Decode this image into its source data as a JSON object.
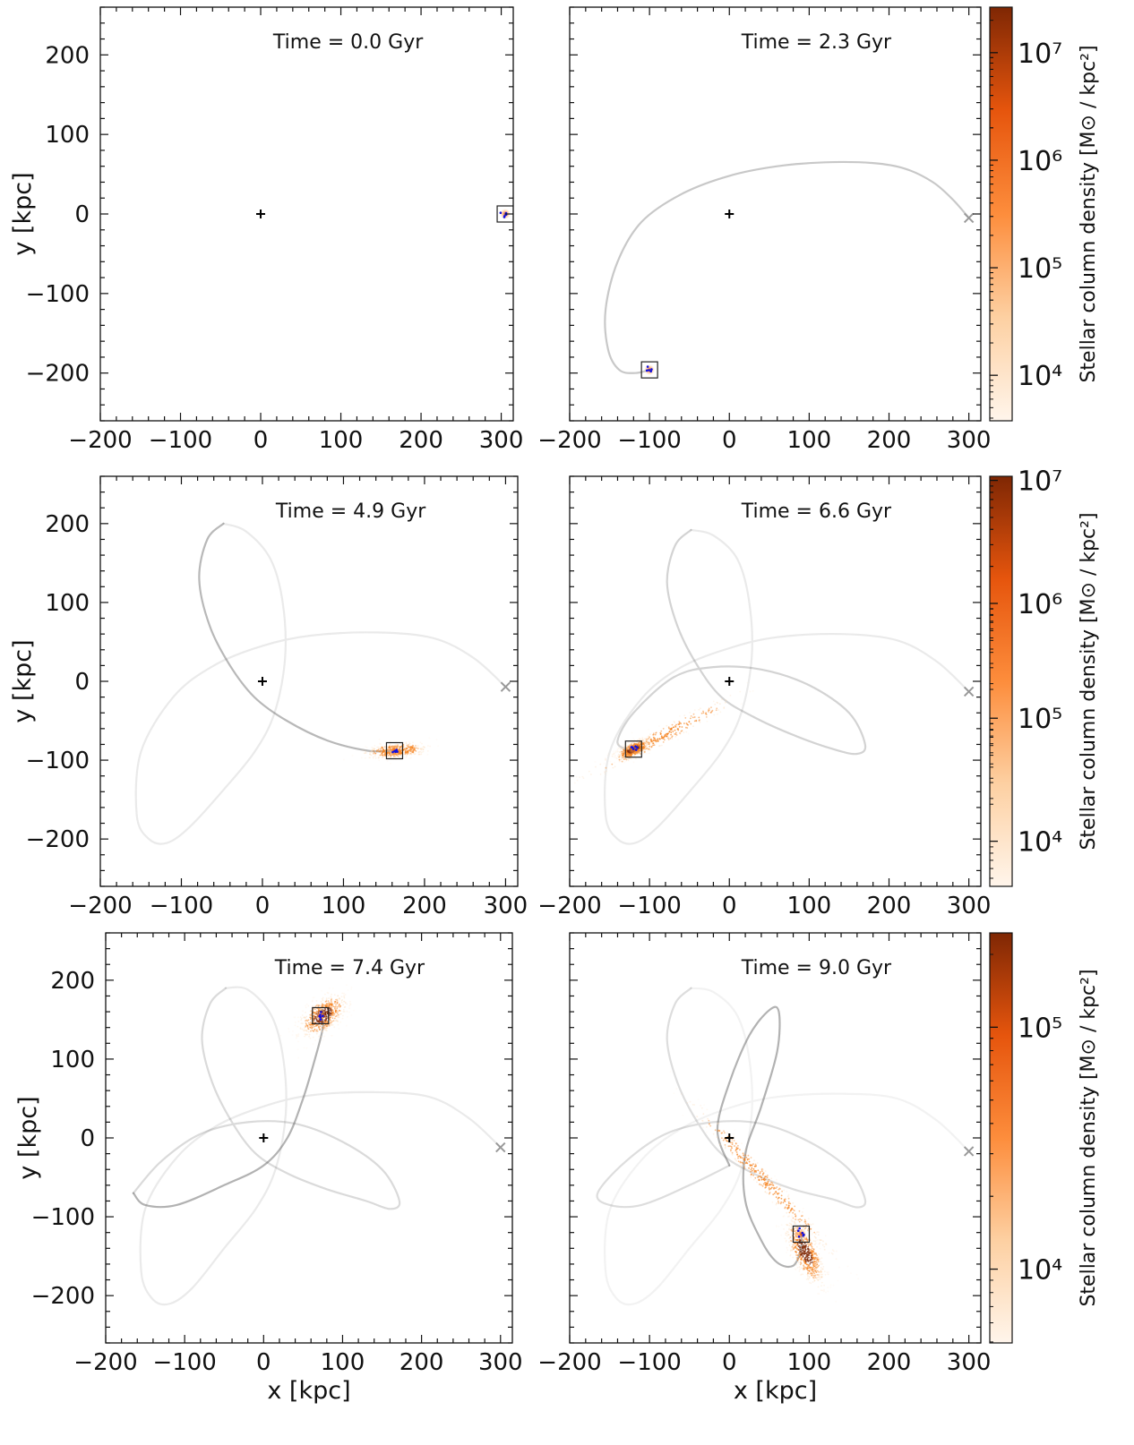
{
  "figure": {
    "x_label": "x [kpc]",
    "y_label": "y [kpc]",
    "colorbar_label": "Stellar column density [M⊙ / kpc²]"
  },
  "chart_data": [
    {
      "type": "scatter",
      "annotation": "Time = 0.0 Gyr",
      "xlim": [
        -200,
        315
      ],
      "ylim": [
        -260,
        260
      ],
      "x_ticks": [
        -200,
        -100,
        0,
        100,
        200,
        300
      ],
      "y_ticks": [
        -200,
        -100,
        0,
        100,
        200
      ],
      "host_center": [
        0,
        0
      ],
      "satellite": [
        305,
        0
      ],
      "start_marker": null,
      "orbit_segments": [],
      "stream": []
    },
    {
      "type": "scatter",
      "annotation": "Time = 2.3 Gyr",
      "xlim": [
        -200,
        315
      ],
      "ylim": [
        -260,
        260
      ],
      "x_ticks": [
        -200,
        -100,
        0,
        100,
        200,
        300
      ],
      "y_ticks": [
        -200,
        -100,
        0,
        100,
        200
      ],
      "host_center": [
        0,
        0
      ],
      "satellite": [
        -100,
        -196
      ],
      "start_marker": [
        300,
        -5
      ],
      "orbit_segments": [
        {
          "opacity": 0.32,
          "points": [
            [
              300,
              -5
            ],
            [
              280,
              18
            ],
            [
              255,
              40
            ],
            [
              220,
              57
            ],
            [
              180,
              64
            ],
            [
              120,
              65
            ],
            [
              60,
              60
            ],
            [
              0,
              48
            ],
            [
              -60,
              25
            ],
            [
              -110,
              -10
            ],
            [
              -140,
              -60
            ],
            [
              -155,
              -120
            ],
            [
              -152,
              -170
            ],
            [
              -138,
              -196
            ],
            [
              -118,
              -200
            ],
            [
              -100,
              -196
            ]
          ]
        }
      ],
      "stream": []
    },
    {
      "type": "scatter",
      "annotation": "Time = 4.9 Gyr",
      "xlim": [
        -200,
        315
      ],
      "ylim": [
        -260,
        260
      ],
      "x_ticks": [
        -200,
        -100,
        0,
        100,
        200,
        300
      ],
      "y_ticks": [
        -200,
        -100,
        0,
        100,
        200
      ],
      "host_center": [
        0,
        0
      ],
      "satellite": [
        163,
        -88
      ],
      "start_marker": [
        300,
        -7
      ],
      "orbit_segments": [
        {
          "opacity": 0.12,
          "points": [
            [
              300,
              -7
            ],
            [
              260,
              30
            ],
            [
              210,
              55
            ],
            [
              140,
              62
            ],
            [
              60,
              58
            ],
            [
              0,
              45
            ],
            [
              -60,
              20
            ],
            [
              -110,
              -20
            ],
            [
              -150,
              -90
            ],
            [
              -155,
              -170
            ],
            [
              -140,
              -200
            ],
            [
              -118,
              -205
            ],
            [
              -90,
              -185
            ],
            [
              -50,
              -140
            ],
            [
              -10,
              -90
            ],
            [
              15,
              -40
            ],
            [
              28,
              30
            ],
            [
              25,
              100
            ],
            [
              10,
              155
            ],
            [
              -20,
              190
            ],
            [
              -48,
              200
            ]
          ]
        },
        {
          "opacity": 0.42,
          "points": [
            [
              -48,
              200
            ],
            [
              -68,
              180
            ],
            [
              -78,
              130
            ],
            [
              -65,
              70
            ],
            [
              -40,
              20
            ],
            [
              -10,
              -20
            ],
            [
              30,
              -50
            ],
            [
              80,
              -75
            ],
            [
              130,
              -88
            ],
            [
              163,
              -88
            ]
          ]
        }
      ],
      "stream": [
        {
          "center": [
            165,
            -88
          ],
          "length": 60,
          "width": 14,
          "angle": 5,
          "density": 0.35
        }
      ]
    },
    {
      "type": "scatter",
      "annotation": "Time = 6.6 Gyr",
      "xlim": [
        -200,
        315
      ],
      "ylim": [
        -260,
        260
      ],
      "x_ticks": [
        -200,
        -100,
        0,
        100,
        200,
        300
      ],
      "y_ticks": [
        -200,
        -100,
        0,
        100,
        200
      ],
      "host_center": [
        0,
        0
      ],
      "satellite": [
        -120,
        -86
      ],
      "start_marker": [
        300,
        -13
      ],
      "orbit_segments": [
        {
          "opacity": 0.12,
          "points": [
            [
              300,
              -13
            ],
            [
              260,
              25
            ],
            [
              210,
              52
            ],
            [
              140,
              60
            ],
            [
              60,
              56
            ],
            [
              0,
              42
            ],
            [
              -60,
              18
            ],
            [
              -110,
              -22
            ],
            [
              -150,
              -90
            ],
            [
              -155,
              -170
            ],
            [
              -140,
              -200
            ],
            [
              -118,
              -205
            ],
            [
              -90,
              -185
            ],
            [
              -50,
              -140
            ],
            [
              -10,
              -90
            ],
            [
              15,
              -40
            ],
            [
              28,
              30
            ],
            [
              25,
              100
            ],
            [
              10,
              155
            ],
            [
              -20,
              185
            ],
            [
              -48,
              192
            ]
          ]
        },
        {
          "opacity": 0.26,
          "points": [
            [
              -48,
              192
            ],
            [
              -68,
              172
            ],
            [
              -78,
              125
            ],
            [
              -65,
              70
            ],
            [
              -40,
              20
            ],
            [
              -10,
              -20
            ],
            [
              30,
              -45
            ],
            [
              80,
              -68
            ],
            [
              130,
              -86
            ],
            [
              160,
              -92
            ],
            [
              170,
              -80
            ],
            [
              150,
              -40
            ],
            [
              100,
              -5
            ],
            [
              40,
              15
            ],
            [
              -20,
              18
            ],
            [
              -70,
              5
            ],
            [
              -120,
              -40
            ],
            [
              -140,
              -75
            ],
            [
              -130,
              -86
            ],
            [
              -120,
              -86
            ]
          ]
        }
      ],
      "stream": [
        {
          "center": [
            -85,
            -70
          ],
          "length": 170,
          "width": 16,
          "angle": 28,
          "density": 0.2
        },
        {
          "center": [
            -120,
            -86
          ],
          "length": 35,
          "width": 14,
          "angle": 25,
          "density": 0.55
        }
      ]
    },
    {
      "type": "scatter",
      "annotation": "Time = 7.4 Gyr",
      "xlim": [
        -200,
        315
      ],
      "ylim": [
        -260,
        260
      ],
      "x_ticks": [
        -200,
        -100,
        0,
        100,
        200,
        300
      ],
      "y_ticks": [
        -200,
        -100,
        0,
        100,
        200
      ],
      "host_center": [
        0,
        0
      ],
      "satellite": [
        72,
        155
      ],
      "start_marker": [
        300,
        -12
      ],
      "orbit_segments": [
        {
          "opacity": 0.12,
          "points": [
            [
              300,
              -12
            ],
            [
              260,
              25
            ],
            [
              210,
              52
            ],
            [
              140,
              58
            ],
            [
              60,
              54
            ],
            [
              0,
              40
            ],
            [
              -60,
              15
            ],
            [
              -110,
              -25
            ],
            [
              -150,
              -90
            ],
            [
              -155,
              -170
            ],
            [
              -140,
              -205
            ],
            [
              -118,
              -210
            ],
            [
              -90,
              -190
            ],
            [
              -50,
              -140
            ],
            [
              -10,
              -90
            ],
            [
              15,
              -40
            ],
            [
              28,
              30
            ],
            [
              25,
              100
            ],
            [
              10,
              155
            ],
            [
              -20,
              188
            ],
            [
              -48,
              190
            ]
          ]
        },
        {
          "opacity": 0.22,
          "points": [
            [
              -48,
              190
            ],
            [
              -68,
              170
            ],
            [
              -78,
              125
            ],
            [
              -65,
              70
            ],
            [
              -40,
              20
            ],
            [
              -10,
              -20
            ],
            [
              30,
              -45
            ],
            [
              80,
              -65
            ],
            [
              130,
              -80
            ],
            [
              160,
              -90
            ],
            [
              172,
              -80
            ],
            [
              150,
              -40
            ],
            [
              100,
              -5
            ],
            [
              40,
              18
            ],
            [
              -20,
              20
            ],
            [
              -80,
              5
            ],
            [
              -130,
              -30
            ],
            [
              -165,
              -70
            ]
          ]
        },
        {
          "opacity": 0.45,
          "points": [
            [
              -165,
              -70
            ],
            [
              -150,
              -85
            ],
            [
              -110,
              -85
            ],
            [
              -50,
              -60
            ],
            [
              0,
              -35
            ],
            [
              30,
              0
            ],
            [
              50,
              50
            ],
            [
              65,
              100
            ],
            [
              75,
              140
            ],
            [
              72,
              155
            ]
          ]
        }
      ],
      "stream": [
        {
          "center": [
            75,
            155
          ],
          "length": 55,
          "width": 30,
          "angle": 40,
          "density": 0.6
        }
      ]
    },
    {
      "type": "scatter",
      "annotation": "Time = 9.0 Gyr",
      "xlim": [
        -200,
        315
      ],
      "ylim": [
        -260,
        260
      ],
      "x_ticks": [
        -200,
        -100,
        0,
        100,
        200,
        300
      ],
      "y_ticks": [
        -200,
        -100,
        0,
        100,
        200
      ],
      "host_center": [
        0,
        0
      ],
      "satellite": [
        90,
        -122
      ],
      "start_marker": [
        300,
        -17
      ],
      "orbit_segments": [
        {
          "opacity": 0.08,
          "points": [
            [
              300,
              -17
            ],
            [
              260,
              22
            ],
            [
              210,
              50
            ],
            [
              140,
              56
            ],
            [
              60,
              52
            ],
            [
              0,
              38
            ],
            [
              -60,
              12
            ],
            [
              -110,
              -28
            ],
            [
              -150,
              -92
            ],
            [
              -155,
              -170
            ],
            [
              -140,
              -205
            ],
            [
              -118,
              -210
            ],
            [
              -90,
              -190
            ],
            [
              -50,
              -140
            ],
            [
              -10,
              -90
            ],
            [
              15,
              -40
            ],
            [
              28,
              30
            ],
            [
              25,
              100
            ],
            [
              10,
              155
            ],
            [
              -20,
              185
            ],
            [
              -48,
              190
            ]
          ]
        },
        {
          "opacity": 0.2,
          "points": [
            [
              -48,
              190
            ],
            [
              -68,
              170
            ],
            [
              -78,
              125
            ],
            [
              -65,
              70
            ],
            [
              -40,
              20
            ],
            [
              -10,
              -20
            ],
            [
              30,
              -45
            ],
            [
              80,
              -65
            ],
            [
              130,
              -78
            ],
            [
              160,
              -88
            ],
            [
              170,
              -78
            ],
            [
              150,
              -40
            ],
            [
              100,
              -5
            ],
            [
              40,
              18
            ],
            [
              -20,
              20
            ],
            [
              -80,
              5
            ],
            [
              -130,
              -30
            ],
            [
              -165,
              -70
            ],
            [
              -150,
              -85
            ],
            [
              -110,
              -85
            ],
            [
              -50,
              -60
            ],
            [
              0,
              -35
            ]
          ]
        },
        {
          "opacity": 0.45,
          "points": [
            [
              0,
              -35
            ],
            [
              -15,
              10
            ],
            [
              0,
              70
            ],
            [
              25,
              130
            ],
            [
              50,
              162
            ],
            [
              62,
              160
            ],
            [
              60,
              110
            ],
            [
              40,
              40
            ],
            [
              20,
              -20
            ],
            [
              20,
              -80
            ],
            [
              40,
              -130
            ],
            [
              60,
              -158
            ],
            [
              80,
              -162
            ],
            [
              90,
              -140
            ],
            [
              90,
              -122
            ]
          ]
        }
      ],
      "stream": [
        {
          "center": [
            40,
            -50
          ],
          "length": 200,
          "width": 16,
          "angle": -47,
          "density": 0.3
        },
        {
          "center": [
            95,
            -145
          ],
          "length": 70,
          "width": 26,
          "angle": -65,
          "density": 0.65
        }
      ]
    }
  ],
  "colorbars": [
    {
      "ticks": [
        "10⁴",
        "10⁵",
        "10⁶",
        "10⁷"
      ],
      "positions": [
        0.11,
        0.37,
        0.63,
        0.89
      ]
    },
    {
      "ticks": [
        "10⁴",
        "10⁵",
        "10⁶",
        "10⁷"
      ],
      "positions": [
        0.11,
        0.41,
        0.69,
        0.99
      ]
    },
    {
      "ticks": [
        "10⁴",
        "10⁵"
      ],
      "positions": [
        0.18,
        0.77
      ]
    }
  ],
  "colors": {
    "stream_light": "#fdd6ae",
    "stream_mid": "#f57d15",
    "stream_dark": "#7f2704",
    "orbit": "#555555",
    "host_marker": "#000000",
    "start_marker": "#999999",
    "star_clusters": "#1010e0"
  }
}
